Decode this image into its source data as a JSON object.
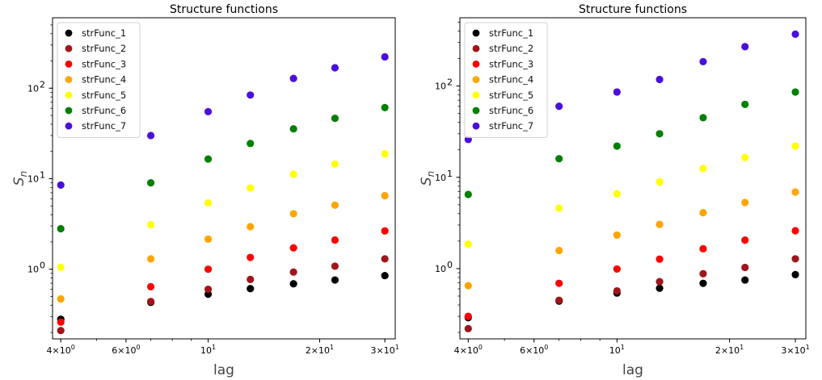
{
  "chart_data": [
    {
      "type": "scatter",
      "title": "Structure functions",
      "xlabel": "lag",
      "ylabel_main": "S",
      "ylabel_sub": "n",
      "xscale": "log",
      "yscale": "log",
      "xlim": [
        3.8,
        32
      ],
      "ylim": [
        0.17,
        600
      ],
      "xticks": [
        {
          "value": 4,
          "base": "4×10",
          "exp": "0"
        },
        {
          "value": 6,
          "base": "6×10",
          "exp": "0"
        },
        {
          "value": 10,
          "base": "10",
          "exp": "1"
        },
        {
          "value": 20,
          "base": "2×10",
          "exp": "1"
        },
        {
          "value": 30,
          "base": "3×10",
          "exp": "1"
        }
      ],
      "yticks": [
        {
          "value": 1,
          "base": "10",
          "exp": "0"
        },
        {
          "value": 10,
          "base": "10",
          "exp": "1"
        },
        {
          "value": 100,
          "base": "10",
          "exp": "2"
        }
      ],
      "legend_position": "top-left",
      "x": [
        4,
        7,
        10,
        13,
        17,
        22,
        30
      ],
      "series": [
        {
          "name": "strFunc_1",
          "color": "#000000",
          "values": [
            0.28,
            0.43,
            0.53,
            0.61,
            0.69,
            0.76,
            0.85
          ]
        },
        {
          "name": "strFunc_2",
          "color": "#a0151b",
          "values": [
            0.21,
            0.44,
            0.6,
            0.77,
            0.93,
            1.08,
            1.3
          ]
        },
        {
          "name": "strFunc_3",
          "color": "#ff0000",
          "values": [
            0.26,
            0.64,
            1.0,
            1.35,
            1.72,
            2.1,
            2.65
          ]
        },
        {
          "name": "strFunc_4",
          "color": "#ffa500",
          "values": [
            0.47,
            1.3,
            2.15,
            2.95,
            4.1,
            5.1,
            6.5
          ]
        },
        {
          "name": "strFunc_5",
          "color": "#ffff00",
          "values": [
            1.05,
            3.1,
            5.4,
            7.9,
            11.2,
            14.5,
            18.8
          ]
        },
        {
          "name": "strFunc_6",
          "color": "#008000",
          "values": [
            2.8,
            9.0,
            16.5,
            24.5,
            35.5,
            46.5,
            61.0
          ]
        },
        {
          "name": "strFunc_7",
          "color": "#4b0fdc",
          "values": [
            8.5,
            30.0,
            55.0,
            84.0,
            128,
            168,
            222
          ]
        }
      ]
    },
    {
      "type": "scatter",
      "title": "Structure functions",
      "xlabel": "lag",
      "ylabel_main": "S",
      "ylabel_sub": "n",
      "xscale": "log",
      "yscale": "log",
      "xlim": [
        3.8,
        32
      ],
      "ylim": [
        0.17,
        560
      ],
      "xticks": [
        {
          "value": 4,
          "base": "4×10",
          "exp": "0"
        },
        {
          "value": 6,
          "base": "6×10",
          "exp": "0"
        },
        {
          "value": 10,
          "base": "10",
          "exp": "1"
        },
        {
          "value": 20,
          "base": "2×10",
          "exp": "1"
        },
        {
          "value": 30,
          "base": "3×10",
          "exp": "1"
        }
      ],
      "yticks": [
        {
          "value": 1,
          "base": "10",
          "exp": "0"
        },
        {
          "value": 10,
          "base": "10",
          "exp": "1"
        },
        {
          "value": 100,
          "base": "10",
          "exp": "2"
        }
      ],
      "legend_position": "top-left",
      "x": [
        4,
        7,
        10,
        13,
        17,
        22,
        30
      ],
      "series": [
        {
          "name": "strFunc_1",
          "color": "#000000",
          "values": [
            0.29,
            0.44,
            0.54,
            0.61,
            0.69,
            0.75,
            0.86
          ]
        },
        {
          "name": "strFunc_2",
          "color": "#a0151b",
          "values": [
            0.22,
            0.45,
            0.57,
            0.72,
            0.88,
            1.03,
            1.28
          ]
        },
        {
          "name": "strFunc_3",
          "color": "#ff0000",
          "values": [
            0.3,
            0.69,
            0.99,
            1.27,
            1.65,
            2.05,
            2.6
          ]
        },
        {
          "name": "strFunc_4",
          "color": "#ffa500",
          "values": [
            0.65,
            1.58,
            2.33,
            3.05,
            4.1,
            5.3,
            6.9
          ]
        },
        {
          "name": "strFunc_5",
          "color": "#ffff00",
          "values": [
            1.85,
            4.6,
            6.6,
            8.9,
            12.5,
            16.5,
            22.0
          ]
        },
        {
          "name": "strFunc_6",
          "color": "#008000",
          "values": [
            6.5,
            16.0,
            22.0,
            30.0,
            45.0,
            63.0,
            86.0
          ]
        },
        {
          "name": "strFunc_7",
          "color": "#4b0fdc",
          "values": [
            26.0,
            60.0,
            86.0,
            118,
            185,
            270,
            370
          ]
        }
      ]
    }
  ]
}
